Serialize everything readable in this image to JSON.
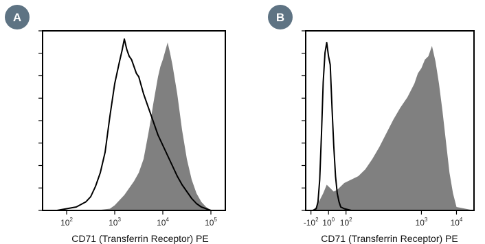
{
  "chart_data": [
    {
      "panel_label": "A",
      "type": "area",
      "scale": "log",
      "xlabel": "CD71 (Transferrin Receptor) PE",
      "xlim": [
        1.5,
        5.3
      ],
      "ylim": [
        0,
        1
      ],
      "grid": false,
      "y_tick_count": 9,
      "x_ticks": [
        {
          "base": "10",
          "exp": "2",
          "value": 2
        },
        {
          "base": "10",
          "exp": "3",
          "value": 3
        },
        {
          "base": "10",
          "exp": "4",
          "value": 4
        },
        {
          "base": "10",
          "exp": "5",
          "value": 5
        }
      ],
      "series": [
        {
          "style": "filled",
          "color": "#808080",
          "x": [
            1.5,
            2.6,
            2.9,
            3.0,
            3.1,
            3.2,
            3.3,
            3.4,
            3.5,
            3.6,
            3.7,
            3.75,
            3.8,
            3.85,
            3.9,
            3.95,
            4.0,
            4.05,
            4.1,
            4.15,
            4.2,
            4.3,
            4.4,
            4.5,
            4.6,
            4.7,
            4.8,
            4.9,
            5.0,
            5.3
          ],
          "y": [
            0,
            0,
            0.01,
            0.03,
            0.06,
            0.09,
            0.13,
            0.17,
            0.22,
            0.3,
            0.45,
            0.53,
            0.62,
            0.7,
            0.78,
            0.84,
            0.88,
            0.93,
            0.98,
            0.92,
            0.85,
            0.68,
            0.47,
            0.3,
            0.18,
            0.1,
            0.05,
            0.02,
            0,
            0
          ]
        },
        {
          "style": "outline",
          "color": "#000000",
          "x": [
            1.5,
            1.8,
            2.0,
            2.2,
            2.4,
            2.5,
            2.6,
            2.7,
            2.8,
            2.9,
            3.0,
            3.1,
            3.15,
            3.2,
            3.25,
            3.3,
            3.35,
            3.4,
            3.45,
            3.5,
            3.55,
            3.6,
            3.7,
            3.8,
            3.9,
            4.0,
            4.1,
            4.2,
            4.3,
            4.4,
            4.5,
            4.6,
            4.7,
            4.8,
            4.9,
            5.0,
            5.3
          ],
          "y": [
            0,
            0,
            0.01,
            0.02,
            0.05,
            0.08,
            0.14,
            0.22,
            0.34,
            0.55,
            0.74,
            0.87,
            0.93,
            1.0,
            0.94,
            0.9,
            0.88,
            0.84,
            0.8,
            0.78,
            0.73,
            0.68,
            0.6,
            0.52,
            0.44,
            0.38,
            0.32,
            0.26,
            0.2,
            0.15,
            0.11,
            0.07,
            0.04,
            0.02,
            0.01,
            0,
            0
          ]
        }
      ]
    },
    {
      "panel_label": "B",
      "type": "area",
      "scale": "biexponential",
      "xlabel": "CD71 (Transferrin Receptor) PE",
      "xlim": [
        -0.3,
        4.5
      ],
      "ylim": [
        0,
        1
      ],
      "grid": false,
      "y_tick_count": 9,
      "x_ticks": [
        {
          "base": "-10",
          "exp": "2",
          "value": -0.15
        },
        {
          "base": "10",
          "exp": "0",
          "value": 0.35
        },
        {
          "base": "10",
          "exp": "2",
          "value": 0.85
        },
        {
          "base": "10",
          "exp": "3",
          "value": 3.0
        },
        {
          "base": "10",
          "exp": "4",
          "value": 4.0
        }
      ],
      "series": [
        {
          "style": "filled",
          "color": "#808080",
          "x": [
            -0.3,
            -0.1,
            0.0,
            0.1,
            0.2,
            0.3,
            0.4,
            0.5,
            0.6,
            0.7,
            0.8,
            0.9,
            1.0,
            1.2,
            1.4,
            1.6,
            1.8,
            2.0,
            2.2,
            2.4,
            2.6,
            2.8,
            2.9,
            3.0,
            3.1,
            3.2,
            3.3,
            3.4,
            3.5,
            3.6,
            3.7,
            3.8,
            3.9,
            4.0,
            4.5
          ],
          "y": [
            0,
            0,
            0.02,
            0.06,
            0.1,
            0.15,
            0.13,
            0.11,
            0.12,
            0.14,
            0.16,
            0.17,
            0.18,
            0.2,
            0.24,
            0.3,
            0.37,
            0.45,
            0.53,
            0.6,
            0.66,
            0.74,
            0.8,
            0.83,
            0.88,
            0.9,
            0.96,
            0.87,
            0.74,
            0.58,
            0.4,
            0.22,
            0.1,
            0.02,
            0
          ]
        },
        {
          "style": "outline",
          "color": "#000000",
          "x": [
            -0.3,
            -0.1,
            0.0,
            0.05,
            0.1,
            0.15,
            0.2,
            0.25,
            0.3,
            0.35,
            0.4,
            0.45,
            0.5,
            0.55,
            0.6,
            0.65,
            0.7,
            0.8,
            1.0,
            4.5
          ],
          "y": [
            0,
            0,
            0.01,
            0.05,
            0.18,
            0.45,
            0.75,
            0.92,
            0.98,
            0.9,
            0.85,
            0.6,
            0.38,
            0.2,
            0.1,
            0.05,
            0.02,
            0.01,
            0,
            0
          ]
        }
      ]
    }
  ]
}
